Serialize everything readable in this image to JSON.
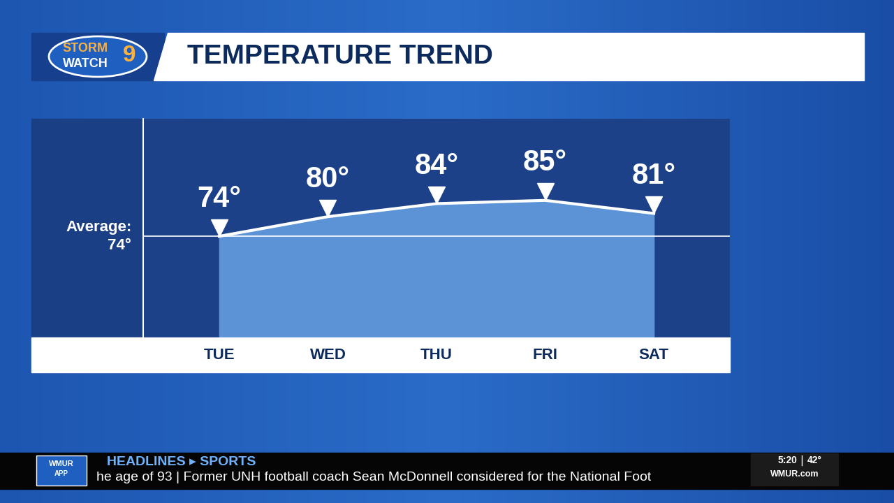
{
  "chart_data": {
    "type": "line",
    "title": "TEMPERATURE TREND",
    "categories": [
      "TUE",
      "WED",
      "THU",
      "FRI",
      "SAT"
    ],
    "values": [
      74,
      80,
      84,
      85,
      81
    ],
    "value_labels": [
      "74°",
      "80°",
      "84°",
      "85°",
      "81°"
    ],
    "data_labels": true,
    "marker": "triangle_down",
    "color": "#5b93d6",
    "ylim": [
      43,
      110
    ],
    "tick_labels": "x",
    "reference_line": {
      "value": 74,
      "label": [
        "Average:",
        "74°"
      ]
    }
  },
  "logo": [
    "STORM",
    "WATCH",
    "9"
  ],
  "ticker": {
    "app": [
      "WMUR",
      "APP"
    ],
    "section": "HEADLINES ▸ SPORTS",
    "headline": "he age of 93 | Former UNH football coach Sean McDonnell considered for the National Foot",
    "time": "5:20",
    "temperature": "42°",
    "site": "WMUR.com"
  }
}
